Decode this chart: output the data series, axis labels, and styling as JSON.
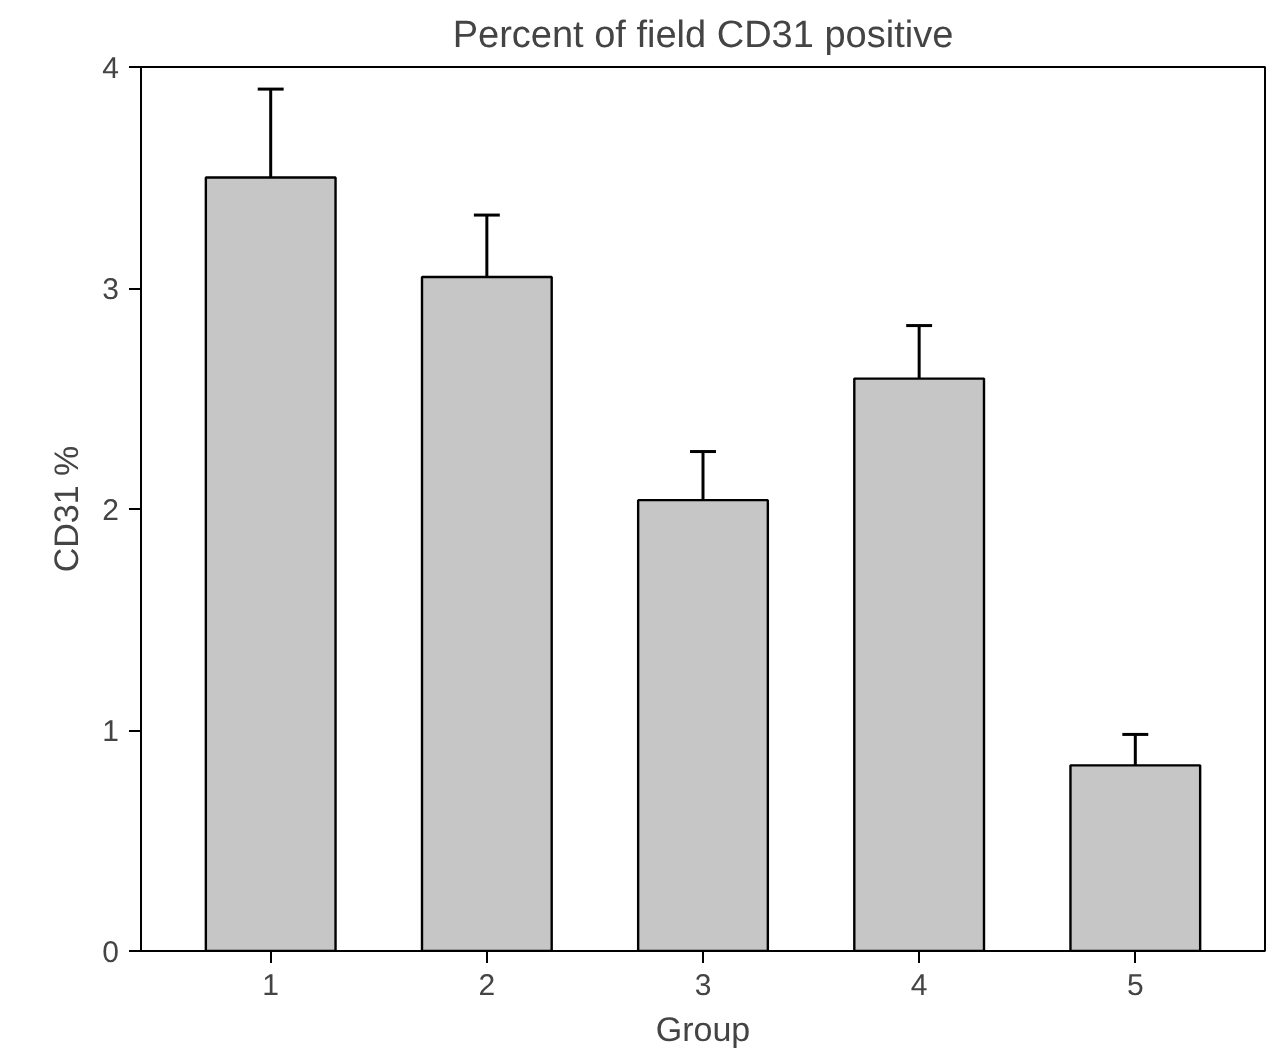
{
  "chart_data": {
    "type": "bar",
    "title": "Percent of field CD31 positive",
    "xlabel": "Group",
    "ylabel": "CD31 %",
    "categories": [
      "1",
      "2",
      "3",
      "4",
      "5"
    ],
    "values": [
      3.5,
      3.05,
      2.04,
      2.59,
      0.84
    ],
    "errors": [
      [
        3.5,
        3.9
      ],
      [
        3.05,
        3.33
      ],
      [
        2.04,
        2.26
      ],
      [
        2.59,
        2.83
      ],
      [
        0.84,
        0.98
      ]
    ],
    "color": "#c6c6c6",
    "ylim": [
      0,
      4
    ],
    "yticks": [
      0,
      1,
      2,
      3,
      4
    ],
    "grid": false
  }
}
